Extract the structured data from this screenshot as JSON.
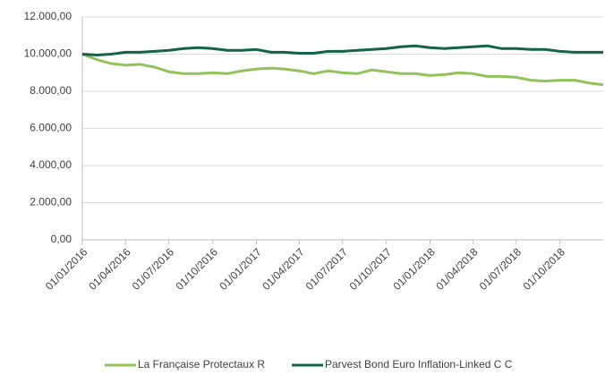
{
  "chart_data": {
    "type": "line",
    "x": [
      "01/01/2016",
      "01/02/2016",
      "01/03/2016",
      "01/04/2016",
      "01/05/2016",
      "01/06/2016",
      "01/07/2016",
      "01/08/2016",
      "01/09/2016",
      "01/10/2016",
      "01/11/2016",
      "01/12/2016",
      "01/01/2017",
      "01/02/2017",
      "01/03/2017",
      "01/04/2017",
      "01/05/2017",
      "01/06/2017",
      "01/07/2017",
      "01/08/2017",
      "01/09/2017",
      "01/10/2017",
      "01/11/2017",
      "01/12/2017",
      "01/01/2018",
      "01/02/2018",
      "01/03/2018",
      "01/04/2018",
      "01/05/2018",
      "01/06/2018",
      "01/07/2018",
      "01/08/2018",
      "01/09/2018",
      "01/10/2018",
      "01/11/2018",
      "01/12/2018",
      "31/12/2018"
    ],
    "series": [
      {
        "name": "La Française Protectaux R",
        "color": "#92c35a",
        "values": [
          10000,
          9700,
          9500,
          9400,
          9450,
          9300,
          9050,
          8950,
          8950,
          9000,
          8950,
          9100,
          9200,
          9250,
          9200,
          9100,
          8950,
          9100,
          9000,
          8950,
          9150,
          9050,
          8950,
          8950,
          8850,
          8900,
          9000,
          8950,
          8800,
          8800,
          8750,
          8600,
          8550,
          8600,
          8600,
          8450,
          8350
        ]
      },
      {
        "name": "Parvest Bond Euro Inflation-Linked C C",
        "color": "#13624a",
        "values": [
          10000,
          9950,
          10000,
          10100,
          10100,
          10150,
          10200,
          10300,
          10350,
          10300,
          10200,
          10200,
          10250,
          10100,
          10100,
          10050,
          10050,
          10150,
          10150,
          10200,
          10250,
          10300,
          10400,
          10450,
          10350,
          10300,
          10350,
          10400,
          10450,
          10300,
          10300,
          10250,
          10250,
          10150,
          10100,
          10100,
          10100
        ]
      }
    ],
    "xlim": [
      "01/01/2016",
      "31/12/2018"
    ],
    "xticks": [
      "01/01/2016",
      "01/04/2016",
      "01/07/2016",
      "01/10/2016",
      "01/01/2017",
      "01/04/2017",
      "01/07/2017",
      "01/10/2017",
      "01/01/2018",
      "01/04/2018",
      "01/07/2018",
      "01/10/2018"
    ],
    "ylim": [
      0,
      12000
    ],
    "yticks": [
      {
        "value": 0,
        "label": "0,00"
      },
      {
        "value": 2000,
        "label": "2.000,00"
      },
      {
        "value": 4000,
        "label": "4.000,00"
      },
      {
        "value": 6000,
        "label": "6.000,00"
      },
      {
        "value": 8000,
        "label": "8.000,00"
      },
      {
        "value": 10000,
        "label": "10.000,00"
      },
      {
        "value": 12000,
        "label": "12.000,00"
      }
    ],
    "grid": true,
    "legend": "bottom"
  }
}
